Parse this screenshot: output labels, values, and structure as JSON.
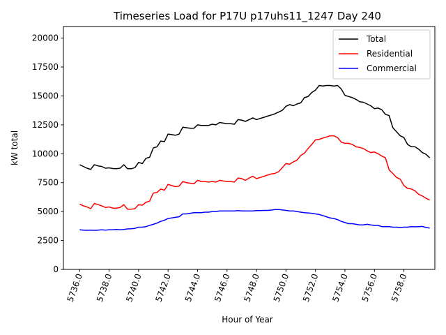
{
  "chart_data": {
    "type": "line",
    "title": "Timeseries Load for P17U p17uhs11_1247  Day 240",
    "xlabel": "Hour of Year",
    "ylabel": "kW total",
    "xlim": [
      5734.9,
      5760.1
    ],
    "ylim": [
      0,
      21000
    ],
    "xticks": [
      5736,
      5738,
      5740,
      5742,
      5744,
      5746,
      5748,
      5750,
      5752,
      5754,
      5756,
      5758
    ],
    "xtick_labels": [
      "5736.0",
      "5738.0",
      "5740.0",
      "5742.0",
      "5744.0",
      "5746.0",
      "5748.0",
      "5750.0",
      "5752.0",
      "5754.0",
      "5756.0",
      "5758.0"
    ],
    "yticks": [
      0,
      2500,
      5000,
      7500,
      10000,
      12500,
      15000,
      17500,
      20000
    ],
    "ytick_labels": [
      "0",
      "2500",
      "5000",
      "7500",
      "10000",
      "12500",
      "15000",
      "17500",
      "20000"
    ],
    "grid": false,
    "legend": "top-right",
    "x": [
      5736.0,
      5736.25,
      5736.5,
      5736.75,
      5737.0,
      5737.25,
      5737.5,
      5737.75,
      5738.0,
      5738.25,
      5738.5,
      5738.75,
      5739.0,
      5739.25,
      5739.5,
      5739.75,
      5740.0,
      5740.25,
      5740.5,
      5740.75,
      5741.0,
      5741.25,
      5741.5,
      5741.75,
      5742.0,
      5742.25,
      5742.5,
      5742.75,
      5743.0,
      5743.25,
      5743.5,
      5743.75,
      5744.0,
      5744.25,
      5744.5,
      5744.75,
      5745.0,
      5745.25,
      5745.5,
      5745.75,
      5746.0,
      5746.25,
      5746.5,
      5746.75,
      5747.0,
      5747.25,
      5747.5,
      5747.75,
      5748.0,
      5748.25,
      5748.5,
      5748.75,
      5749.0,
      5749.25,
      5749.5,
      5749.75,
      5750.0,
      5750.25,
      5750.5,
      5750.75,
      5751.0,
      5751.25,
      5751.5,
      5751.75,
      5752.0,
      5752.25,
      5752.5,
      5752.75,
      5753.0,
      5753.25,
      5753.5,
      5753.75,
      5754.0,
      5754.25,
      5754.5,
      5754.75,
      5755.0,
      5755.25,
      5755.5,
      5755.75,
      5756.0,
      5756.25,
      5756.5,
      5756.75,
      5757.0,
      5757.25,
      5757.5,
      5757.75,
      5758.0,
      5758.25,
      5758.5,
      5758.75,
      5759.0,
      5759.25,
      5759.5,
      5759.75
    ],
    "series": [
      {
        "name": "Total",
        "color": "#000000",
        "values": [
          9050,
          8900,
          8750,
          8650,
          9050,
          8950,
          8900,
          8750,
          8780,
          8720,
          8700,
          8750,
          9050,
          8700,
          8700,
          8800,
          9250,
          9150,
          9600,
          9700,
          10500,
          10600,
          11100,
          11050,
          11700,
          11650,
          11600,
          11700,
          12300,
          12250,
          12200,
          12200,
          12500,
          12450,
          12450,
          12450,
          12550,
          12500,
          12700,
          12650,
          12600,
          12600,
          12550,
          12950,
          12900,
          12800,
          12950,
          13100,
          12950,
          13050,
          13150,
          13250,
          13350,
          13450,
          13600,
          13750,
          14100,
          14250,
          14150,
          14300,
          14400,
          14850,
          14950,
          15300,
          15500,
          15900,
          15850,
          15900,
          15900,
          15850,
          15900,
          15600,
          15050,
          14950,
          14850,
          14700,
          14500,
          14450,
          14300,
          14150,
          13900,
          13950,
          13800,
          13400,
          13300,
          12250,
          11900,
          11550,
          11400,
          10800,
          10600,
          10600,
          10400,
          10100,
          9950,
          9650
        ]
      },
      {
        "name": "Residential",
        "color": "#ff0000",
        "values": [
          5650,
          5500,
          5400,
          5250,
          5700,
          5600,
          5500,
          5350,
          5400,
          5300,
          5300,
          5350,
          5600,
          5200,
          5200,
          5250,
          5600,
          5550,
          5800,
          5900,
          6600,
          6650,
          6950,
          6850,
          7350,
          7250,
          7150,
          7200,
          7600,
          7500,
          7450,
          7400,
          7700,
          7600,
          7600,
          7550,
          7600,
          7550,
          7700,
          7650,
          7600,
          7600,
          7550,
          7900,
          7850,
          7700,
          7900,
          8050,
          7850,
          7950,
          8050,
          8150,
          8250,
          8300,
          8450,
          8800,
          9150,
          9100,
          9300,
          9450,
          9850,
          10050,
          10450,
          10800,
          11200,
          11250,
          11350,
          11450,
          11550,
          11550,
          11400,
          11000,
          10900,
          10900,
          10800,
          10600,
          10550,
          10450,
          10250,
          10100,
          10150,
          10000,
          9800,
          9650,
          8600,
          8300,
          7950,
          7800,
          7250,
          7000,
          6950,
          6800,
          6500,
          6350,
          6150,
          6000
        ]
      },
      {
        "name": "Commercial",
        "color": "#0000ff",
        "values": [
          3420,
          3400,
          3380,
          3400,
          3380,
          3400,
          3420,
          3400,
          3420,
          3420,
          3450,
          3430,
          3450,
          3500,
          3520,
          3550,
          3650,
          3650,
          3700,
          3800,
          3900,
          4000,
          4150,
          4250,
          4400,
          4450,
          4500,
          4550,
          4800,
          4800,
          4850,
          4900,
          4900,
          4900,
          4950,
          4950,
          5000,
          5000,
          5050,
          5050,
          5050,
          5050,
          5050,
          5080,
          5050,
          5050,
          5050,
          5050,
          5080,
          5080,
          5100,
          5100,
          5130,
          5180,
          5180,
          5150,
          5100,
          5050,
          5050,
          5000,
          4950,
          4900,
          4880,
          4850,
          4800,
          4750,
          4650,
          4550,
          4450,
          4400,
          4300,
          4150,
          4050,
          3950,
          3950,
          3900,
          3850,
          3850,
          3900,
          3850,
          3800,
          3800,
          3700,
          3700,
          3700,
          3650,
          3650,
          3620,
          3650,
          3650,
          3700,
          3680,
          3700,
          3720,
          3620,
          3580
        ]
      }
    ]
  }
}
